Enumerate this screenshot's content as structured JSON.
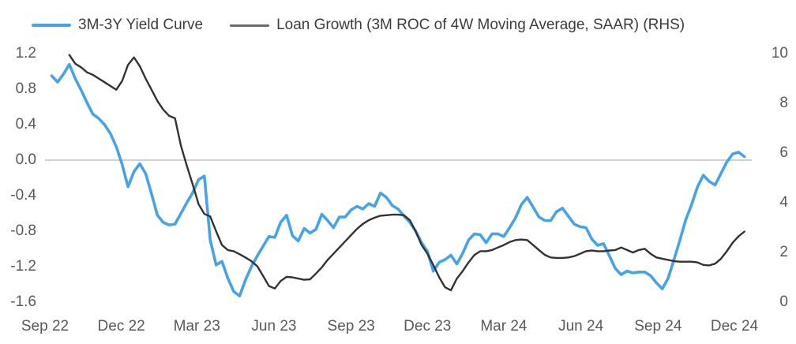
{
  "legend": {
    "items": [
      {
        "label": "3M-3Y Yield Curve",
        "color": "#47a3e8"
      },
      {
        "label": "Loan Growth (3M ROC of 4W Moving Average, SAAR) (RHS)",
        "color": "#6a6a6a"
      }
    ]
  },
  "chart_data": {
    "type": "line",
    "title": "",
    "grid": "off",
    "legend_position": "top-left",
    "background": "#ffffff",
    "x_axis": {
      "ticks": [
        {
          "label": "Sep 22",
          "date": "2022-09-01"
        },
        {
          "label": "Dec 22",
          "date": "2022-12-01"
        },
        {
          "label": "Mar 23",
          "date": "2023-03-01"
        },
        {
          "label": "Jun 23",
          "date": "2023-06-01"
        },
        {
          "label": "Sep 23",
          "date": "2023-09-01"
        },
        {
          "label": "Dec 23",
          "date": "2023-12-01"
        },
        {
          "label": "Mar 24",
          "date": "2024-03-01"
        },
        {
          "label": "Jun 24",
          "date": "2024-06-01"
        },
        {
          "label": "Sep 24",
          "date": "2024-09-01"
        },
        {
          "label": "Dec 24",
          "date": "2024-12-01"
        }
      ]
    },
    "left_axis": {
      "tick_labels": [
        "1.2",
        "0.8",
        "0.4",
        "0.0",
        "-0.4",
        "-0.8",
        "-1.2",
        "-1.6"
      ],
      "range": [
        -1.6,
        1.2
      ]
    },
    "right_axis": {
      "tick_labels": [
        "10",
        "8",
        "6",
        "4",
        "2",
        "0"
      ],
      "range": [
        0,
        10
      ]
    },
    "zero_line": {
      "axis": "left",
      "value": 0.0,
      "color": "#b3b3b3"
    },
    "series": [
      {
        "name": "3M-3Y Yield Curve",
        "axis": "left",
        "color": "#47a3e8",
        "stroke_width": 3.6,
        "start_date": "2022-09-09",
        "step_days": 7,
        "values": [
          0.95,
          0.88,
          0.97,
          1.08,
          0.92,
          0.79,
          0.65,
          0.52,
          0.47,
          0.4,
          0.3,
          0.15,
          -0.05,
          -0.3,
          -0.13,
          -0.04,
          -0.15,
          -0.38,
          -0.62,
          -0.7,
          -0.73,
          -0.72,
          -0.6,
          -0.48,
          -0.37,
          -0.22,
          -0.18,
          -0.9,
          -1.18,
          -1.14,
          -1.33,
          -1.48,
          -1.53,
          -1.35,
          -1.2,
          -1.08,
          -0.97,
          -0.86,
          -0.87,
          -0.7,
          -0.62,
          -0.85,
          -0.91,
          -0.77,
          -0.82,
          -0.78,
          -0.61,
          -0.68,
          -0.76,
          -0.64,
          -0.64,
          -0.56,
          -0.52,
          -0.55,
          -0.49,
          -0.52,
          -0.37,
          -0.42,
          -0.51,
          -0.55,
          -0.63,
          -0.7,
          -0.8,
          -0.93,
          -1.03,
          -1.25,
          -1.15,
          -1.12,
          -1.07,
          -1.17,
          -1.05,
          -0.9,
          -0.83,
          -0.84,
          -0.93,
          -0.83,
          -0.83,
          -0.86,
          -0.76,
          -0.65,
          -0.5,
          -0.42,
          -0.53,
          -0.64,
          -0.68,
          -0.68,
          -0.58,
          -0.54,
          -0.63,
          -0.72,
          -0.75,
          -0.76,
          -0.89,
          -0.96,
          -0.94,
          -1.08,
          -1.22,
          -1.29,
          -1.25,
          -1.27,
          -1.26,
          -1.26,
          -1.3,
          -1.38,
          -1.45,
          -1.33,
          -1.12,
          -0.9,
          -0.67,
          -0.5,
          -0.3,
          -0.17,
          -0.24,
          -0.28,
          -0.15,
          -0.02,
          0.07,
          0.09,
          0.04
        ]
      },
      {
        "name": "Loan Growth (3M ROC of 4W Moving Average, SAAR) (RHS)",
        "axis": "right",
        "color": "#333333",
        "stroke_width": 2.4,
        "start_date": "2022-09-09",
        "step_days": 7,
        "values": [
          null,
          null,
          null,
          9.95,
          9.6,
          9.45,
          9.25,
          9.15,
          9.0,
          8.85,
          8.7,
          8.55,
          8.9,
          9.55,
          9.85,
          9.5,
          9.0,
          8.55,
          8.1,
          7.75,
          7.5,
          7.4,
          6.3,
          5.5,
          4.75,
          3.95,
          3.55,
          3.45,
          2.85,
          2.3,
          2.1,
          2.05,
          1.93,
          1.8,
          1.65,
          1.45,
          1.06,
          0.65,
          0.55,
          0.85,
          1.02,
          1.0,
          0.95,
          0.9,
          0.92,
          1.15,
          1.4,
          1.7,
          1.95,
          2.2,
          2.45,
          2.7,
          2.95,
          3.15,
          3.3,
          3.4,
          3.48,
          3.5,
          3.52,
          3.52,
          3.5,
          3.3,
          2.85,
          2.3,
          1.95,
          1.5,
          1.0,
          0.6,
          0.48,
          0.95,
          1.25,
          1.6,
          1.9,
          2.05,
          2.05,
          2.1,
          2.2,
          2.3,
          2.42,
          2.5,
          2.52,
          2.5,
          2.3,
          2.1,
          1.9,
          1.8,
          1.78,
          1.78,
          1.8,
          1.85,
          1.95,
          2.05,
          2.08,
          2.05,
          2.05,
          2.08,
          2.1,
          2.2,
          2.1,
          2.0,
          2.1,
          2.15,
          1.95,
          1.8,
          1.75,
          1.7,
          1.65,
          1.63,
          1.63,
          1.63,
          1.6,
          1.5,
          1.48,
          1.55,
          1.75,
          2.05,
          2.4,
          2.65,
          2.84
        ]
      }
    ]
  }
}
